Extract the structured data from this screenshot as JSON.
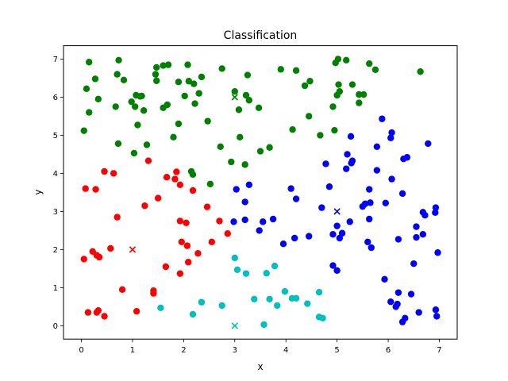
{
  "chart_data": {
    "type": "scatter",
    "title": "Classification",
    "xlabel": "x",
    "ylabel": "y",
    "xlim": [
      -0.35,
      7.35
    ],
    "ylim": [
      -0.35,
      7.35
    ],
    "xticks": [
      0,
      1,
      2,
      3,
      4,
      5,
      6,
      7
    ],
    "yticks": [
      0,
      1,
      2,
      3,
      4,
      5,
      6,
      7
    ],
    "grid": false,
    "legend": "none",
    "series": [
      {
        "color": "#ff0000",
        "marker": "circle",
        "points": [
          [
            0.05,
            1.75
          ],
          [
            0.08,
            3.6
          ],
          [
            0.13,
            0.35
          ],
          [
            0.22,
            1.95
          ],
          [
            0.28,
            3.58
          ],
          [
            0.3,
            0.35
          ],
          [
            0.3,
            1.85
          ],
          [
            0.33,
            0.4
          ],
          [
            0.35,
            1.8
          ],
          [
            0.45,
            0.25
          ],
          [
            0.45,
            4.05
          ],
          [
            0.57,
            2.03
          ],
          [
            0.63,
            4.0
          ],
          [
            0.7,
            2.85
          ],
          [
            0.8,
            0.95
          ],
          [
            1.08,
            0.38
          ],
          [
            1.24,
            3.15
          ],
          [
            1.31,
            4.33
          ],
          [
            1.41,
            0.85
          ],
          [
            1.41,
            0.92
          ],
          [
            1.5,
            3.35
          ],
          [
            1.65,
            1.55
          ],
          [
            1.67,
            3.9
          ],
          [
            1.83,
            3.85
          ],
          [
            1.86,
            4.04
          ],
          [
            1.93,
            1.37
          ],
          [
            1.93,
            2.75
          ],
          [
            1.93,
            3.7
          ],
          [
            1.96,
            2.2
          ],
          [
            2.05,
            2.7
          ],
          [
            2.07,
            2.1
          ],
          [
            2.09,
            1.67
          ],
          [
            2.18,
            3.55
          ],
          [
            2.28,
            1.9
          ],
          [
            2.46,
            3.12
          ],
          [
            2.55,
            2.2
          ],
          [
            2.7,
            2.75
          ],
          [
            2.86,
            2.42
          ]
        ]
      },
      {
        "color": "#008000",
        "marker": "circle",
        "points": [
          [
            0.05,
            5.12
          ],
          [
            0.1,
            6.22
          ],
          [
            0.15,
            6.92
          ],
          [
            0.15,
            5.6
          ],
          [
            0.27,
            6.48
          ],
          [
            0.33,
            5.95
          ],
          [
            0.67,
            5.75
          ],
          [
            0.7,
            6.6
          ],
          [
            0.72,
            4.78
          ],
          [
            0.73,
            6.97
          ],
          [
            0.83,
            6.45
          ],
          [
            0.98,
            5.88
          ],
          [
            1.03,
            4.53
          ],
          [
            1.05,
            5.75
          ],
          [
            1.07,
            6.05
          ],
          [
            1.1,
            5.27
          ],
          [
            1.15,
            6.02
          ],
          [
            1.18,
            6.03
          ],
          [
            1.22,
            5.65
          ],
          [
            1.28,
            4.75
          ],
          [
            1.45,
            6.6
          ],
          [
            1.47,
            6.78
          ],
          [
            1.47,
            6.43
          ],
          [
            1.6,
            5.72
          ],
          [
            1.6,
            6.83
          ],
          [
            1.68,
            5.8
          ],
          [
            1.7,
            6.85
          ],
          [
            1.8,
            4.95
          ],
          [
            1.9,
            5.3
          ],
          [
            1.9,
            6.4
          ],
          [
            2.02,
            6.03
          ],
          [
            2.08,
            6.85
          ],
          [
            2.1,
            6.42
          ],
          [
            2.15,
            4.05
          ],
          [
            2.18,
            3.97
          ],
          [
            2.2,
            6.35
          ],
          [
            2.22,
            5.83
          ],
          [
            2.3,
            6.1
          ],
          [
            2.35,
            6.53
          ],
          [
            2.47,
            5.37
          ],
          [
            2.52,
            3.72
          ],
          [
            2.72,
            4.7
          ],
          [
            2.75,
            6.75
          ],
          [
            2.93,
            4.3
          ],
          [
            3.0,
            6.15
          ],
          [
            3.08,
            5.67
          ],
          [
            3.1,
            4.95
          ],
          [
            3.2,
            4.23
          ],
          [
            3.22,
            6.05
          ],
          [
            3.25,
            6.58
          ],
          [
            3.28,
            5.92
          ],
          [
            3.47,
            5.72
          ],
          [
            3.5,
            4.58
          ],
          [
            3.68,
            4.68
          ],
          [
            3.9,
            6.73
          ],
          [
            4.13,
            5.15
          ],
          [
            4.2,
            6.7
          ],
          [
            4.37,
            6.3
          ],
          [
            4.45,
            5.5
          ],
          [
            4.47,
            6.42
          ],
          [
            4.67,
            5.0
          ],
          [
            4.92,
            5.75
          ],
          [
            4.95,
            5.13
          ],
          [
            4.97,
            6.9
          ],
          [
            5.0,
            6.05
          ],
          [
            5.02,
            7.0
          ],
          [
            5.03,
            6.33
          ],
          [
            5.05,
            6.15
          ],
          [
            5.18,
            6.97
          ],
          [
            5.3,
            6.33
          ],
          [
            5.43,
            5.85
          ],
          [
            5.43,
            6.07
          ],
          [
            5.52,
            6.07
          ],
          [
            5.63,
            6.88
          ],
          [
            5.75,
            6.72
          ],
          [
            6.63,
            6.67
          ]
        ]
      },
      {
        "color": "#0000ff",
        "marker": "circle",
        "points": [
          [
            2.98,
            2.73
          ],
          [
            3.03,
            3.58
          ],
          [
            3.2,
            2.78
          ],
          [
            3.2,
            3.25
          ],
          [
            3.28,
            3.7
          ],
          [
            3.48,
            2.5
          ],
          [
            3.55,
            2.73
          ],
          [
            3.75,
            2.8
          ],
          [
            3.95,
            2.15
          ],
          [
            4.1,
            3.6
          ],
          [
            4.17,
            2.3
          ],
          [
            4.2,
            3.33
          ],
          [
            4.45,
            2.35
          ],
          [
            4.7,
            3.1
          ],
          [
            4.78,
            4.25
          ],
          [
            4.85,
            3.65
          ],
          [
            4.92,
            2.4
          ],
          [
            4.92,
            1.58
          ],
          [
            5.0,
            2.62
          ],
          [
            5.0,
            1.45
          ],
          [
            5.05,
            2.3
          ],
          [
            5.1,
            2.43
          ],
          [
            5.18,
            4.12
          ],
          [
            5.2,
            4.5
          ],
          [
            5.25,
            2.73
          ],
          [
            5.27,
            4.97
          ],
          [
            5.28,
            4.27
          ],
          [
            5.3,
            4.33
          ],
          [
            5.5,
            3.13
          ],
          [
            5.55,
            3.2
          ],
          [
            5.6,
            2.2
          ],
          [
            5.63,
            3.58
          ],
          [
            5.63,
            2.8
          ],
          [
            5.65,
            3.23
          ],
          [
            5.67,
            2.05
          ],
          [
            5.78,
            4.7
          ],
          [
            5.78,
            4.08
          ],
          [
            5.88,
            5.43
          ],
          [
            5.93,
            1.22
          ],
          [
            5.95,
            3.22
          ],
          [
            6.05,
            0.63
          ],
          [
            6.05,
            4.93
          ],
          [
            6.07,
            3.85
          ],
          [
            6.07,
            5.07
          ],
          [
            6.15,
            0.5
          ],
          [
            6.18,
            0.57
          ],
          [
            6.2,
            2.27
          ],
          [
            6.2,
            0.87
          ],
          [
            6.28,
            3.47
          ],
          [
            6.28,
            0.1
          ],
          [
            6.3,
            4.38
          ],
          [
            6.33,
            0.2
          ],
          [
            6.37,
            4.42
          ],
          [
            6.45,
            0.83
          ],
          [
            6.5,
            1.63
          ],
          [
            6.55,
            2.6
          ],
          [
            6.55,
            2.32
          ],
          [
            6.6,
            0.35
          ],
          [
            6.68,
            2.98
          ],
          [
            6.68,
            2.4
          ],
          [
            6.72,
            2.9
          ],
          [
            6.78,
            4.78
          ],
          [
            6.92,
            2.97
          ],
          [
            6.93,
            3.1
          ],
          [
            6.93,
            0.42
          ],
          [
            6.95,
            0.25
          ],
          [
            6.97,
            1.92
          ]
        ]
      },
      {
        "color": "#00bfbf",
        "marker": "circle",
        "points": [
          [
            1.55,
            0.47
          ],
          [
            2.18,
            0.3
          ],
          [
            2.35,
            0.62
          ],
          [
            2.75,
            0.53
          ],
          [
            3.0,
            1.78
          ],
          [
            3.05,
            1.47
          ],
          [
            3.22,
            1.37
          ],
          [
            3.38,
            0.7
          ],
          [
            3.57,
            0.03
          ],
          [
            3.62,
            1.38
          ],
          [
            3.68,
            0.7
          ],
          [
            3.78,
            1.57
          ],
          [
            3.83,
            0.53
          ],
          [
            3.98,
            0.9
          ],
          [
            4.12,
            0.72
          ],
          [
            4.2,
            0.72
          ],
          [
            4.42,
            0.58
          ],
          [
            4.65,
            0.88
          ],
          [
            4.65,
            0.23
          ],
          [
            4.72,
            0.2
          ]
        ]
      }
    ],
    "centroids": [
      {
        "color": "#ff0000",
        "marker": "x",
        "point": [
          1.0,
          2.0
        ]
      },
      {
        "color": "#008000",
        "marker": "x",
        "point": [
          3.0,
          6.0
        ]
      },
      {
        "color": "#0000ff",
        "marker": "x",
        "point": [
          5.0,
          3.0
        ]
      },
      {
        "color": "#00bfbf",
        "marker": "x",
        "point": [
          3.0,
          0.0
        ]
      }
    ]
  }
}
